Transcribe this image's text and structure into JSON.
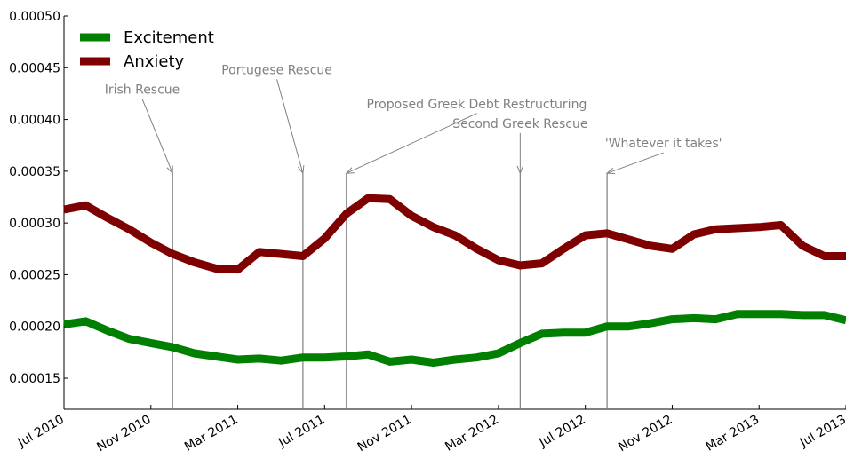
{
  "chart_data": {
    "type": "line",
    "title": "",
    "xlabel": "",
    "ylabel": "",
    "x_range": [
      "2010-07",
      "2013-07"
    ],
    "ylim": [
      0.00012,
      0.0005
    ],
    "y_ticks": [
      "0.00015",
      "0.00020",
      "0.00025",
      "0.00030",
      "0.00035",
      "0.00040",
      "0.00045",
      "0.00050"
    ],
    "x_ticks": [
      {
        "label": "Jul 2010",
        "month": 0
      },
      {
        "label": "Nov 2010",
        "month": 4
      },
      {
        "label": "Mar 2011",
        "month": 8
      },
      {
        "label": "Jul 2011",
        "month": 12
      },
      {
        "label": "Nov 2011",
        "month": 16
      },
      {
        "label": "Mar 2012",
        "month": 20
      },
      {
        "label": "Jul 2012",
        "month": 24
      },
      {
        "label": "Nov 2012",
        "month": 28
      },
      {
        "label": "Mar 2013",
        "month": 32
      },
      {
        "label": "Jul 2013",
        "month": 36
      }
    ],
    "legend_position": "top-left",
    "grid": false,
    "series": [
      {
        "name": "Excitement",
        "color": "#007f00",
        "points": [
          [
            0,
            0.000202
          ],
          [
            1,
            0.000205
          ],
          [
            2,
            0.000196
          ],
          [
            3,
            0.000188
          ],
          [
            4,
            0.000184
          ],
          [
            5,
            0.00018
          ],
          [
            6,
            0.000174
          ],
          [
            7,
            0.000171
          ],
          [
            8,
            0.000168
          ],
          [
            9,
            0.000169
          ],
          [
            10,
            0.000167
          ],
          [
            11,
            0.00017
          ],
          [
            12,
            0.00017
          ],
          [
            13,
            0.000171
          ],
          [
            14,
            0.000173
          ],
          [
            15,
            0.000166
          ],
          [
            16,
            0.000168
          ],
          [
            17,
            0.000165
          ],
          [
            18,
            0.000168
          ],
          [
            19,
            0.00017
          ],
          [
            20,
            0.000174
          ],
          [
            21,
            0.000184
          ],
          [
            22,
            0.000193
          ],
          [
            23,
            0.000194
          ],
          [
            24,
            0.000194
          ],
          [
            25,
            0.0002
          ],
          [
            26,
            0.0002
          ],
          [
            27,
            0.000203
          ],
          [
            28,
            0.000207
          ],
          [
            29,
            0.000208
          ],
          [
            30,
            0.000207
          ],
          [
            31,
            0.000212
          ],
          [
            32,
            0.000212
          ],
          [
            33,
            0.000212
          ],
          [
            34,
            0.000211
          ],
          [
            35,
            0.000211
          ],
          [
            36,
            0.000206
          ]
        ]
      },
      {
        "name": "Anxiety",
        "color": "#7f0000",
        "points": [
          [
            0,
            0.000313
          ],
          [
            1,
            0.000317
          ],
          [
            2,
            0.000305
          ],
          [
            3,
            0.000294
          ],
          [
            4,
            0.000281
          ],
          [
            5,
            0.00027
          ],
          [
            6,
            0.000262
          ],
          [
            7,
            0.000256
          ],
          [
            8,
            0.000255
          ],
          [
            9,
            0.000272
          ],
          [
            10,
            0.00027
          ],
          [
            11,
            0.000268
          ],
          [
            12,
            0.000285
          ],
          [
            13,
            0.000309
          ],
          [
            14,
            0.000324
          ],
          [
            15,
            0.000323
          ],
          [
            16,
            0.000307
          ],
          [
            17,
            0.000296
          ],
          [
            18,
            0.000288
          ],
          [
            19,
            0.000275
          ],
          [
            20,
            0.000264
          ],
          [
            21,
            0.000259
          ],
          [
            22,
            0.000261
          ],
          [
            23,
            0.000275
          ],
          [
            24,
            0.000288
          ],
          [
            25,
            0.00029
          ],
          [
            26,
            0.000284
          ],
          [
            27,
            0.000278
          ],
          [
            28,
            0.000275
          ],
          [
            29,
            0.000289
          ],
          [
            30,
            0.000294
          ],
          [
            31,
            0.000295
          ],
          [
            32,
            0.000296
          ],
          [
            33,
            0.000298
          ],
          [
            34,
            0.000278
          ],
          [
            35,
            0.000268
          ],
          [
            36,
            0.000268
          ]
        ]
      }
    ],
    "annotations": [
      {
        "text": "Irish Rescue",
        "event_month": 5,
        "event_y": 0.000348,
        "text_month": 3.6,
        "text_y": 0.000425
      },
      {
        "text": "Portugese Rescue",
        "event_month": 11,
        "event_y": 0.000348,
        "text_month": 9.8,
        "text_y": 0.000444
      },
      {
        "text": "Proposed Greek Debt Restructuring",
        "event_month": 13,
        "event_y": 0.000348,
        "text_month": 19,
        "text_y": 0.000411
      },
      {
        "text": "Second Greek Rescue",
        "event_month": 21,
        "event_y": 0.000348,
        "text_month": 21,
        "text_y": 0.000392
      },
      {
        "text": "'Whatever it takes'",
        "event_month": 25,
        "event_y": 0.000348,
        "text_month": 27.6,
        "text_y": 0.000373
      }
    ]
  }
}
